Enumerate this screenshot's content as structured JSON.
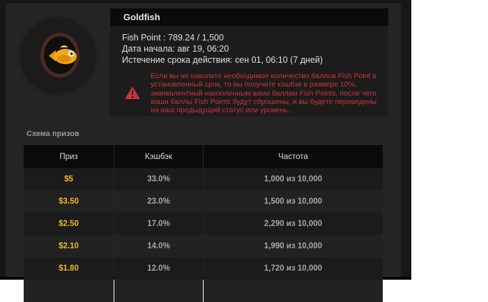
{
  "card": {
    "title": "Goldfish",
    "fish_point": "Fish Point : 789.24  / 1,500",
    "start_date": "Дата начала: авг 19, 06:20",
    "expiry": "Истечение срока действия: сен 01, 06:10 (7 дней)",
    "warning": "Если вы не накопите необходимое количество баллов Fish Point в установленный срок, то вы получите кэшбэк в размере 10%, эквивалентный накопленным вами баллам Fish Points. после чего ваши баллы Fish Points будут сброшены, и вы будете переведены на ваш предыдущий статус или уровень.",
    "icon": "goldfish-icon",
    "warning_icon": "warning-triangle-icon"
  },
  "prizes": {
    "title": "Схема призов",
    "headers": [
      "Приз",
      "Кэшбэк",
      "Частота"
    ],
    "rows": [
      {
        "prize": "$5",
        "cashback": "33.0%",
        "frequency": "1,000 из 10,000"
      },
      {
        "prize": "$3.50",
        "cashback": "23.0%",
        "frequency": "1,500 из 10,000"
      },
      {
        "prize": "$2.50",
        "cashback": "17.0%",
        "frequency": "2,290 из 10,000"
      },
      {
        "prize": "$2.10",
        "cashback": "14.0%",
        "frequency": "1,990 из 10,000"
      },
      {
        "prize": "$1.80",
        "cashback": "12.0%",
        "frequency": "1,720 из 10,000"
      }
    ]
  },
  "colors": {
    "prize": "#f2b722",
    "warning": "#d0343a",
    "background": "#242424"
  }
}
